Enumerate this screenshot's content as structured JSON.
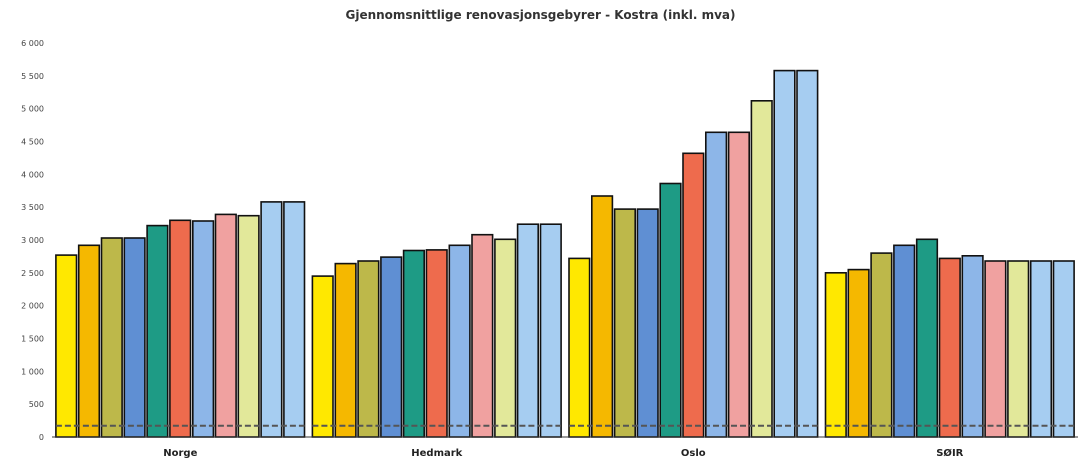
{
  "chart_data": {
    "type": "bar",
    "title": "Gjennomsnittlige renovasjonsgebyrer - Kostra (inkl. mva)",
    "xlabel": "",
    "ylabel": "",
    "ylim": [
      0,
      6000
    ],
    "yticks": [
      0,
      500,
      1000,
      1500,
      2000,
      2500,
      3000,
      3500,
      4000,
      4500,
      5000,
      5500,
      6000
    ],
    "ytick_labels": [
      "0",
      "500",
      "1 000",
      "1 500",
      "2 000",
      "2 500",
      "3 000",
      "3 500",
      "4 000",
      "4 500",
      "5 000",
      "5 500",
      "6 000"
    ],
    "grid": false,
    "legend": "none",
    "categories": [
      "Norge",
      "Hedmark",
      "Oslo",
      "SØIR"
    ],
    "series": [
      {
        "color": "#FFE800",
        "values": [
          2770,
          2450,
          2720,
          2500
        ]
      },
      {
        "color": "#F5B800",
        "values": [
          2920,
          2640,
          3670,
          2550
        ]
      },
      {
        "color": "#BDB84A",
        "values": [
          3030,
          2680,
          3470,
          2800
        ]
      },
      {
        "color": "#5F8FD3",
        "values": [
          3030,
          2740,
          3470,
          2920
        ]
      },
      {
        "color": "#1E9B85",
        "values": [
          3220,
          2840,
          3860,
          3010
        ]
      },
      {
        "color": "#EE6B4D",
        "values": [
          3300,
          2850,
          4320,
          2720
        ]
      },
      {
        "color": "#8DB6E8",
        "values": [
          3290,
          2920,
          4640,
          2760
        ]
      },
      {
        "color": "#F0A1A0",
        "values": [
          3390,
          3080,
          4640,
          2680
        ]
      },
      {
        "color": "#E2E89A",
        "values": [
          3370,
          3010,
          5120,
          2680
        ]
      },
      {
        "color": "#A6CDF1",
        "values": [
          3580,
          3240,
          5580,
          2680
        ]
      },
      {
        "color": "#A6CDF1",
        "values": [
          3580,
          3240,
          5580,
          2680
        ]
      }
    ],
    "baseline_marker_value": 170
  }
}
